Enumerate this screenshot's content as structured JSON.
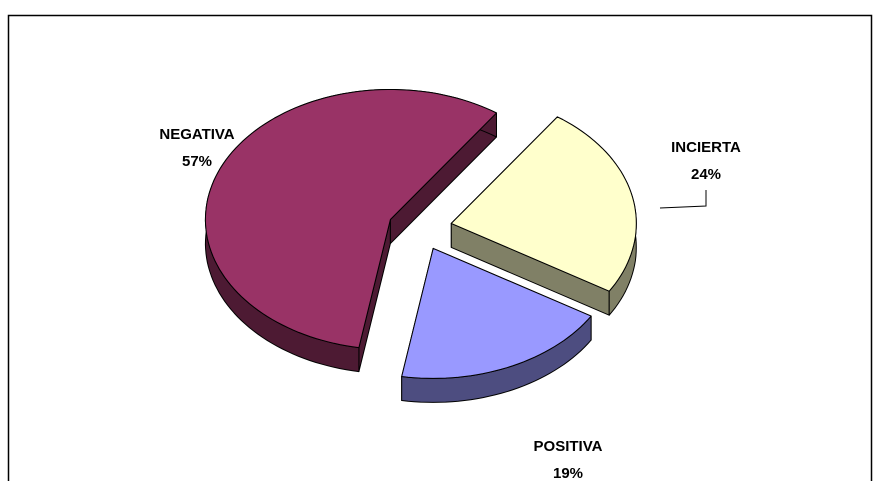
{
  "chart_data": {
    "type": "pie",
    "categories": [
      "INCIERTA",
      "POSITIVA",
      "NEGATIVA"
    ],
    "values": [
      24,
      19,
      57
    ],
    "value_labels": [
      "24%",
      "19%",
      "57%"
    ],
    "colors": [
      "#ffffcc",
      "#9999ff",
      "#993366"
    ],
    "side_colors": [
      "#808066",
      "#4d4d80",
      "#4d1a33"
    ]
  }
}
